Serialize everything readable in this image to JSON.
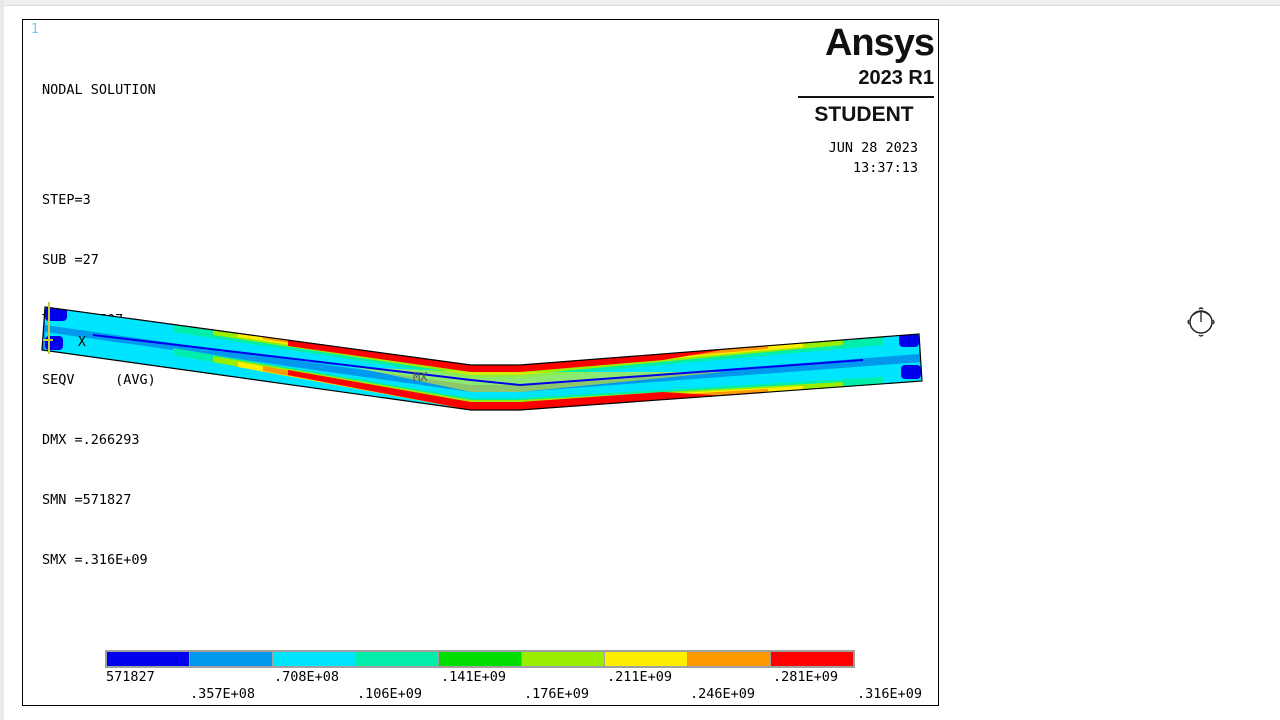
{
  "window": {
    "number": "1"
  },
  "solution": {
    "title": "NODAL SOLUTION",
    "step": "STEP=3",
    "sub": "SUB =27",
    "time": "TIME=1.507",
    "item": "SEQV     (AVG)",
    "dmx": "DMX =.266293",
    "smn": "SMN =571827",
    "smx": "SMX =.316E+09"
  },
  "brand": {
    "logo": "Ansys",
    "version": "2023 R1",
    "edition": "STUDENT"
  },
  "timestamp": {
    "date": "JUN 28 2023",
    "time": "13:37:13"
  },
  "markers": {
    "mx": "MX",
    "axis_x": "X"
  },
  "legend": {
    "colors": [
      "#0000ee",
      "#0099ee",
      "#00e5ff",
      "#00eeaa",
      "#00dd00",
      "#99ee00",
      "#ffee00",
      "#ff9900",
      "#ff0000"
    ],
    "labels_top": [
      "571827",
      ".708E+08",
      ".141E+09",
      ".211E+09",
      ".281E+09"
    ],
    "labels_bottom": [
      ".357E+08",
      ".106E+09",
      ".176E+09",
      ".246E+09",
      ".316E+09"
    ]
  },
  "icons": {
    "mouse": "rotate-mouse-icon"
  }
}
